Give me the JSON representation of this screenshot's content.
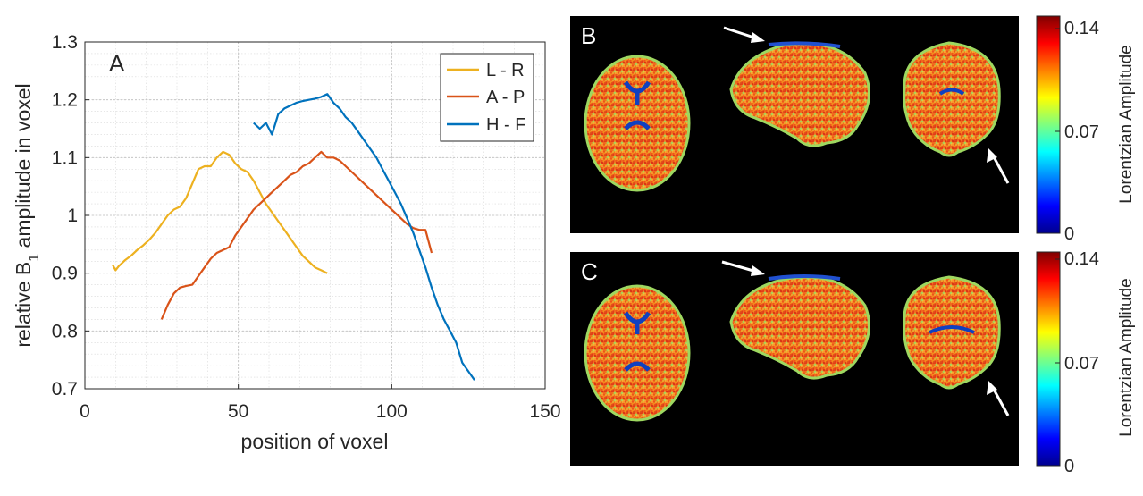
{
  "chart_data": [
    {
      "type": "line",
      "panel_label": "A",
      "xlabel": "position of voxel",
      "ylabel_parts": {
        "before": "relative B",
        "subscript": "1",
        "after": " amplitude in voxel"
      },
      "xlim": [
        0,
        150
      ],
      "ylim": [
        0.7,
        1.3
      ],
      "xticks": [
        0,
        50,
        100,
        150
      ],
      "xtick_labels": [
        "0",
        "50",
        "100",
        "150"
      ],
      "yticks": [
        0.7,
        0.8,
        0.9,
        1.0,
        1.1,
        1.2,
        1.3
      ],
      "ytick_labels": [
        "0.7",
        "0.8",
        "0.9",
        "1",
        "1.1",
        "1.2",
        "1.3"
      ],
      "grid": true,
      "legend_position": "top-right",
      "series": [
        {
          "name": "L - R",
          "color": "#EDB120",
          "x": [
            9,
            10,
            11,
            13,
            15,
            17,
            19,
            21,
            23,
            25,
            27,
            29,
            31,
            33,
            35,
            37,
            39,
            41,
            43,
            45,
            47,
            49,
            51,
            53,
            55,
            57,
            59,
            61,
            63,
            65,
            67,
            69,
            71,
            73,
            75,
            77,
            79
          ],
          "y": [
            0.915,
            0.905,
            0.912,
            0.922,
            0.93,
            0.94,
            0.948,
            0.958,
            0.97,
            0.985,
            1.0,
            1.01,
            1.015,
            1.03,
            1.055,
            1.08,
            1.085,
            1.085,
            1.1,
            1.11,
            1.105,
            1.09,
            1.08,
            1.075,
            1.06,
            1.04,
            1.02,
            1.005,
            0.99,
            0.975,
            0.96,
            0.945,
            0.93,
            0.92,
            0.91,
            0.905,
            0.9
          ]
        },
        {
          "name": "A - P",
          "color": "#D95319",
          "x": [
            25,
            27,
            29,
            31,
            33,
            35,
            37,
            39,
            41,
            43,
            45,
            47,
            49,
            51,
            53,
            55,
            57,
            59,
            61,
            63,
            65,
            67,
            69,
            71,
            73,
            75,
            77,
            79,
            81,
            83,
            85,
            87,
            89,
            91,
            93,
            95,
            97,
            99,
            101,
            103,
            105,
            107,
            109,
            111,
            113
          ],
          "y": [
            0.82,
            0.845,
            0.865,
            0.875,
            0.878,
            0.88,
            0.895,
            0.91,
            0.925,
            0.935,
            0.94,
            0.945,
            0.965,
            0.98,
            0.995,
            1.01,
            1.02,
            1.03,
            1.04,
            1.05,
            1.06,
            1.07,
            1.075,
            1.085,
            1.09,
            1.1,
            1.11,
            1.1,
            1.1,
            1.095,
            1.085,
            1.075,
            1.065,
            1.055,
            1.045,
            1.035,
            1.025,
            1.015,
            1.005,
            0.995,
            0.985,
            0.978,
            0.975,
            0.975,
            0.935
          ]
        },
        {
          "name": "H - F",
          "color": "#0072BD",
          "x": [
            55,
            57,
            59,
            61,
            63,
            65,
            67,
            69,
            71,
            73,
            75,
            77,
            79,
            81,
            83,
            85,
            87,
            89,
            91,
            93,
            95,
            97,
            99,
            101,
            103,
            105,
            107,
            109,
            111,
            113,
            115,
            117,
            119,
            121,
            123,
            125,
            127
          ],
          "y": [
            1.16,
            1.15,
            1.16,
            1.14,
            1.175,
            1.185,
            1.19,
            1.195,
            1.198,
            1.2,
            1.202,
            1.205,
            1.21,
            1.195,
            1.185,
            1.17,
            1.16,
            1.145,
            1.13,
            1.115,
            1.1,
            1.08,
            1.06,
            1.04,
            1.02,
            0.995,
            0.97,
            0.94,
            0.91,
            0.875,
            0.845,
            0.82,
            0.8,
            0.78,
            0.745,
            0.73,
            0.715
          ]
        }
      ]
    },
    {
      "type": "heatmap",
      "panel_label": "B",
      "views": [
        "axial",
        "sagittal",
        "coronal"
      ],
      "colorbar": {
        "label": "Lorentzian Amplitude",
        "min": 0,
        "max": 0.14,
        "ticks": [
          0,
          0.07,
          0.14
        ],
        "tick_labels": [
          "0",
          "0.07",
          "0.14"
        ],
        "colormap": "jet"
      },
      "annotations": [
        "arrow pointing to top of sagittal brain",
        "arrow pointing to lower coronal region"
      ]
    },
    {
      "type": "heatmap",
      "panel_label": "C",
      "views": [
        "axial",
        "sagittal",
        "coronal"
      ],
      "colorbar": {
        "label": "Lorentzian Amplitude",
        "min": 0,
        "max": 0.14,
        "ticks": [
          0,
          0.07,
          0.14
        ],
        "tick_labels": [
          "0",
          "0.07",
          "0.14"
        ],
        "colormap": "jet"
      },
      "annotations": [
        "arrow pointing to top of sagittal brain",
        "arrow pointing to lower coronal region"
      ]
    }
  ]
}
